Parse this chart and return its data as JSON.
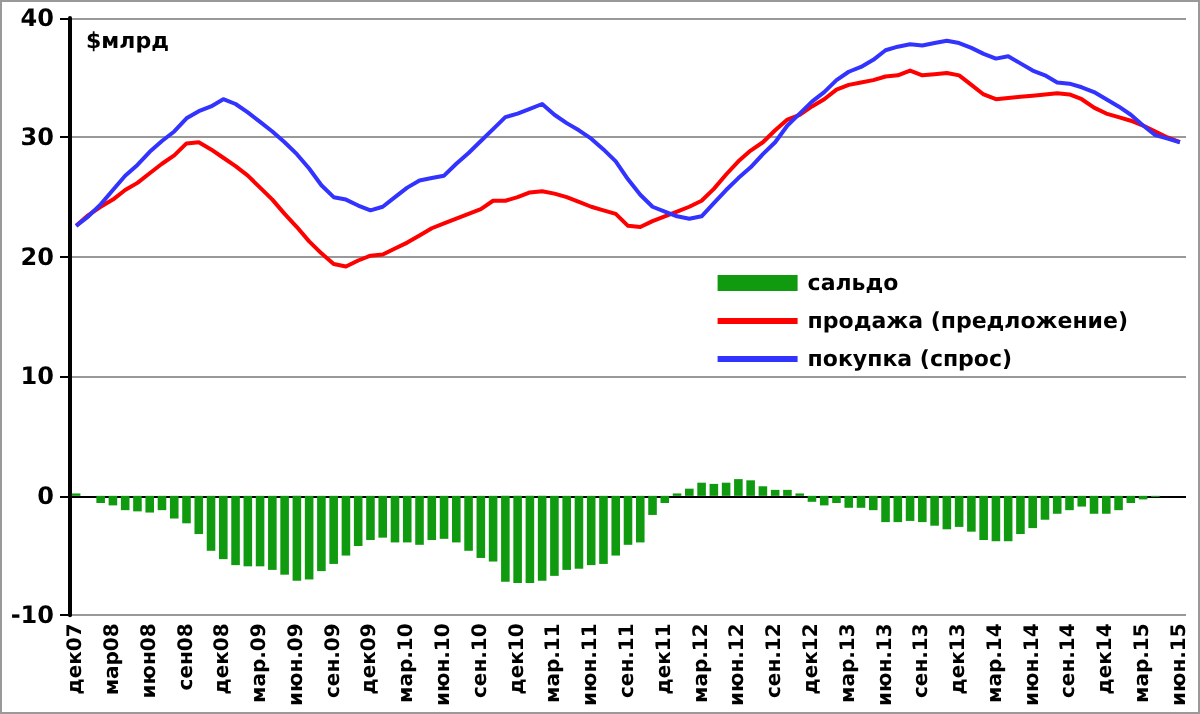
{
  "chart_data": {
    "type": "bar",
    "ylabel": "$млрд",
    "categories": [
      "дек07",
      null,
      null,
      "мар08",
      null,
      null,
      "июн08",
      null,
      null,
      "сен08",
      null,
      null,
      "дек08",
      null,
      null,
      "мар.09",
      null,
      null,
      "июн.09",
      null,
      null,
      "сен.09",
      null,
      null,
      "дек09",
      null,
      null,
      "мар.10",
      null,
      null,
      "июн.10",
      null,
      null,
      "сен.10",
      null,
      null,
      "дек10",
      null,
      null,
      "мар.11",
      null,
      null,
      "июн.11",
      null,
      null,
      "сен.11",
      null,
      null,
      "дек11",
      null,
      null,
      "мар.12",
      null,
      null,
      "июн.12",
      null,
      null,
      "сен.12",
      null,
      null,
      "дек12",
      null,
      null,
      "мар.13",
      null,
      null,
      "июн.13",
      null,
      null,
      "сен.13",
      null,
      null,
      "дек13",
      null,
      null,
      "мар.14",
      null,
      null,
      "июн.14",
      null,
      null,
      "сен.14",
      null,
      null,
      "дек14",
      null,
      null,
      "мар.15",
      null,
      null,
      "июн.15"
    ],
    "series": [
      {
        "name": "сальдо",
        "color": "#109a10",
        "values": [
          0.2,
          0,
          -0.6,
          -0.8,
          -1.2,
          -1.3,
          -1.4,
          -1.2,
          -1.9,
          -2.3,
          -3.2,
          -4.6,
          -5.3,
          -5.8,
          -5.9,
          -5.9,
          -6.2,
          -6.6,
          -7.1,
          -7.0,
          -6.3,
          -5.7,
          -5.0,
          -4.2,
          -3.7,
          -3.5,
          -3.9,
          -3.9,
          -4.1,
          -3.7,
          -3.6,
          -3.9,
          -4.6,
          -5.2,
          -5.5,
          -7.2,
          -7.3,
          -7.3,
          -7.1,
          -6.7,
          -6.2,
          -6.1,
          -5.8,
          -5.7,
          -5.0,
          -4.1,
          -3.9,
          -1.6,
          -0.6,
          0.2,
          0.6,
          1.1,
          1.0,
          1.1,
          1.4,
          1.3,
          0.8,
          0.5,
          0.5,
          0.2,
          -0.5,
          -0.8,
          -0.6,
          -1.0,
          -1.0,
          -1.2,
          -2.2,
          -2.2,
          -2.1,
          -2.2,
          -2.5,
          -2.8,
          -2.6,
          -3.0,
          -3.7,
          -3.8,
          -3.8,
          -3.2,
          -2.7,
          -2.0,
          -1.5,
          -1.2,
          -0.9,
          -1.5,
          -1.5,
          -1.2,
          -0.6,
          -0.3,
          -0.1,
          0,
          0
        ]
      },
      {
        "name": "продажа (предложение)",
        "type": "line",
        "color": "#ff0000",
        "values": [
          22.6,
          23.5,
          24.2,
          24.8,
          25.6,
          26.2,
          27,
          27.8,
          28.5,
          29.5,
          29.6,
          29,
          28.3,
          27.6,
          26.8,
          25.8,
          24.8,
          23.6,
          22.5,
          21.3,
          20.3,
          19.4,
          19.2,
          19.7,
          20.1,
          20.2,
          20.7,
          21.2,
          21.8,
          22.4,
          22.8,
          23.2,
          23.6,
          24,
          24.7,
          24.7,
          25,
          25.4,
          25.5,
          25.3,
          25,
          24.6,
          24.2,
          23.9,
          23.6,
          22.6,
          22.5,
          23,
          23.4,
          23.8,
          24.2,
          24.7,
          25.7,
          26.9,
          28,
          28.9,
          29.6,
          30.6,
          31.5,
          31.9,
          32.6,
          33.2,
          34,
          34.4,
          34.6,
          34.8,
          35.1,
          35.2,
          35.6,
          35.2,
          35.3,
          35.4,
          35.2,
          34.4,
          33.6,
          33.2,
          33.3,
          33.4,
          33.5,
          33.6,
          33.7,
          33.6,
          33.2,
          32.5,
          32,
          31.7,
          31.4,
          31,
          30.5,
          30,
          29.6
        ]
      },
      {
        "name": "покупка (спрос)",
        "type": "line",
        "color": "#3333ff",
        "values": [
          22.6,
          23.4,
          24.4,
          25.6,
          26.8,
          27.7,
          28.8,
          29.7,
          30.5,
          31.6,
          32.2,
          32.6,
          33.2,
          32.8,
          32.1,
          31.3,
          30.5,
          29.6,
          28.6,
          27.4,
          26,
          25,
          24.8,
          24.3,
          23.9,
          24.2,
          25,
          25.8,
          26.4,
          26.6,
          26.8,
          27.8,
          28.7,
          29.7,
          30.7,
          31.7,
          32,
          32.4,
          32.8,
          31.9,
          31.2,
          30.6,
          29.9,
          29,
          28,
          26.5,
          25.2,
          24.2,
          23.8,
          23.4,
          23.2,
          23.4,
          24.5,
          25.6,
          26.6,
          27.5,
          28.6,
          29.6,
          31,
          32,
          33,
          33.8,
          34.8,
          35.5,
          35.9,
          36.5,
          37.3,
          37.6,
          37.8,
          37.7,
          37.9,
          38.1,
          37.9,
          37.5,
          37,
          36.6,
          36.8,
          36.2,
          35.6,
          35.2,
          34.6,
          34.5,
          34.2,
          33.8,
          33.2,
          32.6,
          31.9,
          31,
          30.2,
          29.9,
          29.6
        ]
      }
    ],
    "ylim": [
      -10,
      40
    ],
    "yticks": [
      -10,
      0,
      10,
      20,
      30,
      40
    ],
    "grid": "y",
    "legend": "right",
    "marker": "none",
    "line_style": "solid"
  }
}
